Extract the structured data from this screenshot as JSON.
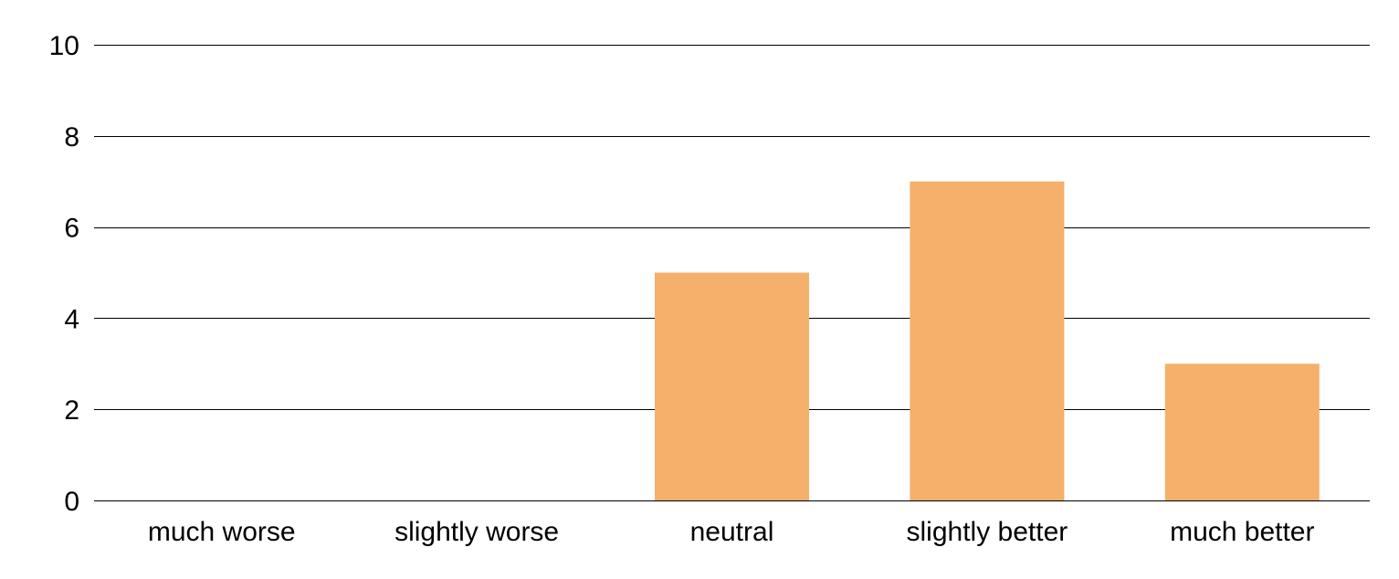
{
  "chart_data": {
    "type": "bar",
    "title": "",
    "xlabel": "",
    "ylabel": "",
    "categories": [
      "much worse",
      "slightly worse",
      "neutral",
      "slightly better",
      "much better"
    ],
    "values": [
      0,
      0,
      5,
      7,
      3
    ],
    "ylim": [
      0,
      10
    ],
    "yticks": [
      "0",
      "2",
      "4",
      "6",
      "8",
      "10"
    ],
    "grid": true,
    "legend": "none",
    "bar_color": "#F5B06C",
    "grid_color": "#000000"
  }
}
